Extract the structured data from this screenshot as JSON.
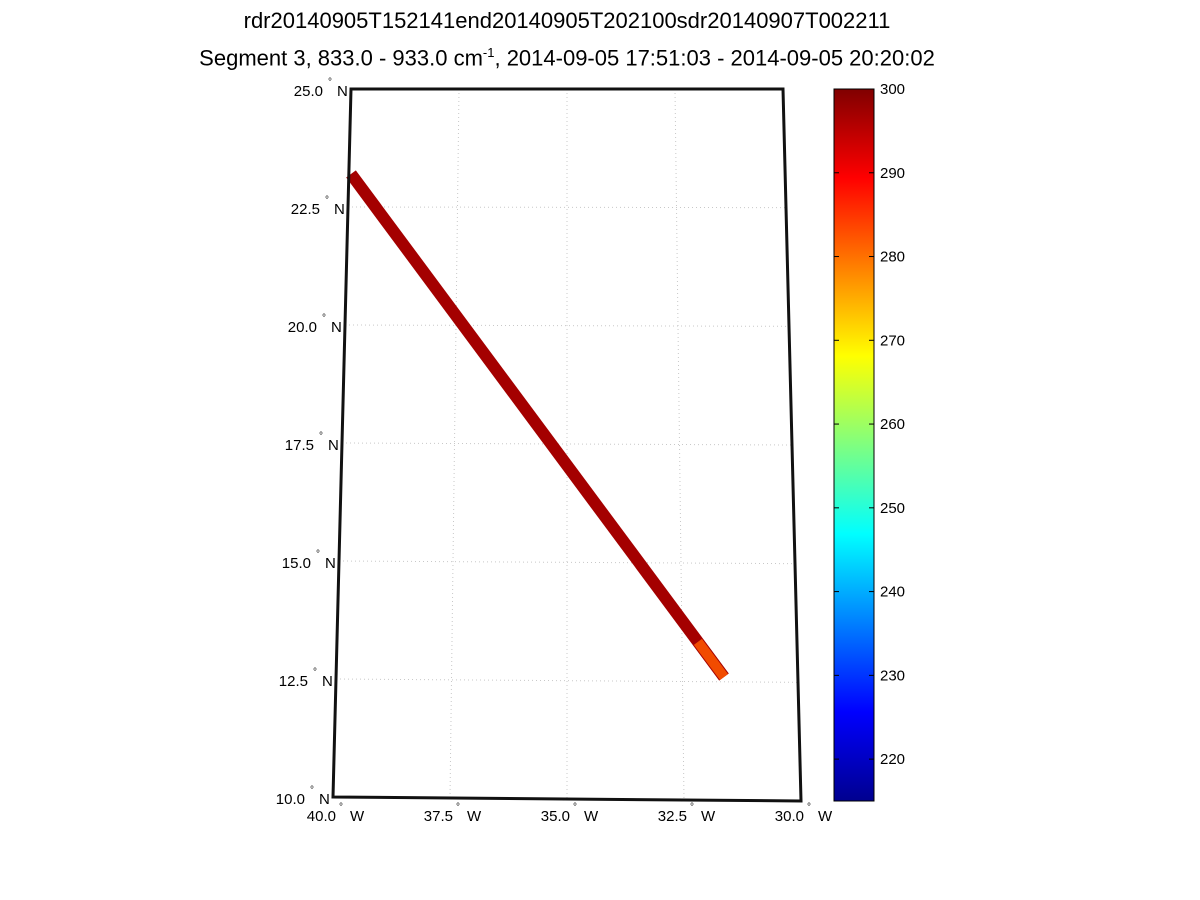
{
  "title": {
    "line1": "rdr20140905T152141end20140905T202100sdr20140907T002211",
    "line2_prefix": "Segment 3, 833.0 - 933.0 cm",
    "line2_sup": "-1",
    "line2_suffix": ", 2014-09-05 17:51:03 - 2014-09-05 20:20:02"
  },
  "map": {
    "lat_range": [
      10.0,
      25.0
    ],
    "lon_range": [
      -40.0,
      -30.0
    ],
    "grid": true,
    "lat_ticks": [
      {
        "value": 25.0,
        "num": "25.0",
        "deg": "°",
        "hemi": "N"
      },
      {
        "value": 22.5,
        "num": "22.5",
        "deg": "°",
        "hemi": "N"
      },
      {
        "value": 20.0,
        "num": "20.0",
        "deg": "°",
        "hemi": "N"
      },
      {
        "value": 17.5,
        "num": "17.5",
        "deg": "°",
        "hemi": "N"
      },
      {
        "value": 15.0,
        "num": "15.0",
        "deg": "°",
        "hemi": "N"
      },
      {
        "value": 12.5,
        "num": "12.5",
        "deg": "°",
        "hemi": "N"
      },
      {
        "value": 10.0,
        "num": "10.0",
        "deg": "°",
        "hemi": "N"
      }
    ],
    "lon_ticks": [
      {
        "value": -40.0,
        "num": "40.0",
        "deg": "°",
        "hemi": "W"
      },
      {
        "value": -37.5,
        "num": "37.5",
        "deg": "°",
        "hemi": "W"
      },
      {
        "value": -35.0,
        "num": "35.0",
        "deg": "°",
        "hemi": "W"
      },
      {
        "value": -32.5,
        "num": "32.5",
        "deg": "°",
        "hemi": "W"
      },
      {
        "value": -30.0,
        "num": "30.0",
        "deg": "°",
        "hemi": "W"
      }
    ],
    "swath": {
      "start": {
        "lon": -39.95,
        "lat": 23.2
      },
      "end": {
        "lon": -31.6,
        "lat": 12.6
      },
      "main_value": 297,
      "tip_value": 282
    }
  },
  "colorbar": {
    "min": 215,
    "max": 300,
    "ticks": [
      {
        "value": 300,
        "label": "300"
      },
      {
        "value": 290,
        "label": "290"
      },
      {
        "value": 280,
        "label": "280"
      },
      {
        "value": 270,
        "label": "270"
      },
      {
        "value": 260,
        "label": "260"
      },
      {
        "value": 250,
        "label": "250"
      },
      {
        "value": 240,
        "label": "240"
      },
      {
        "value": 230,
        "label": "230"
      },
      {
        "value": 220,
        "label": "220"
      }
    ]
  }
}
